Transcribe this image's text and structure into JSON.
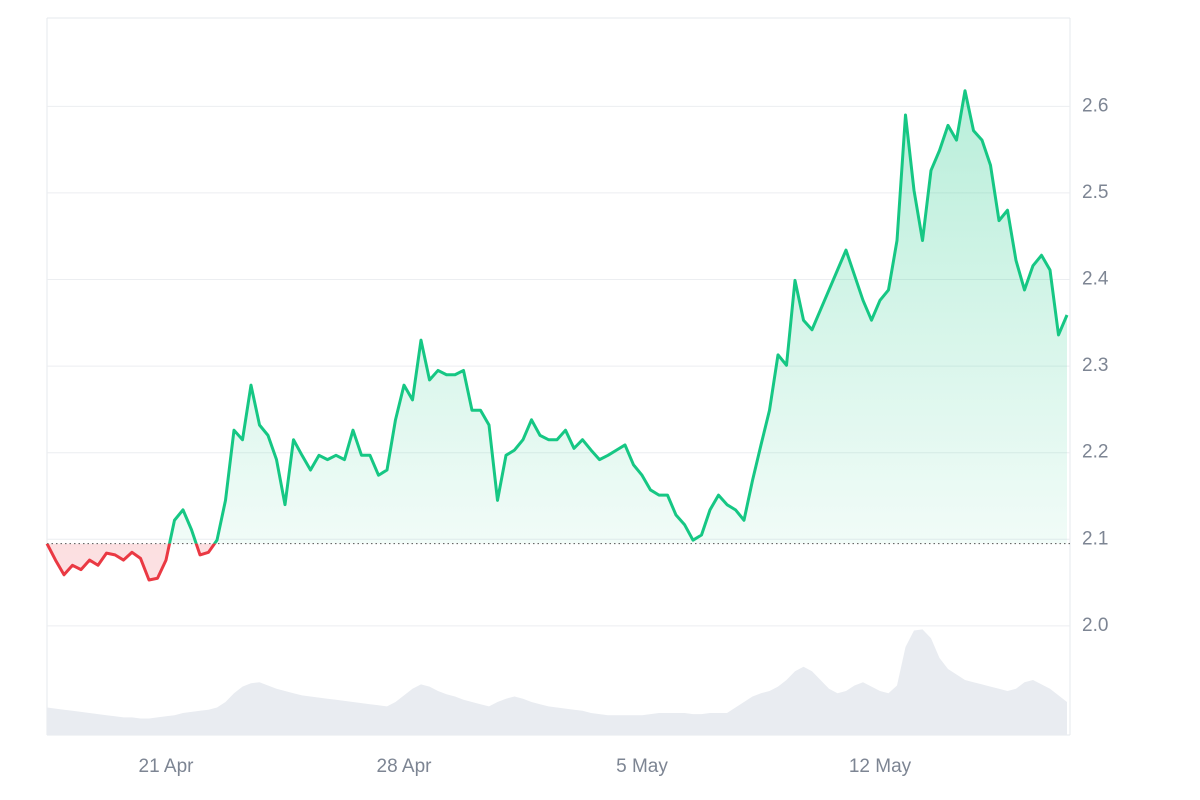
{
  "chart_data": {
    "type": "line",
    "categories": [
      null,
      null,
      null,
      null,
      null,
      null,
      null,
      null,
      null,
      null,
      null,
      null,
      null,
      null,
      "21 Apr",
      null,
      null,
      null,
      null,
      null,
      null,
      null,
      null,
      null,
      null,
      null,
      null,
      null,
      null,
      null,
      null,
      null,
      null,
      null,
      null,
      null,
      null,
      null,
      null,
      null,
      null,
      null,
      "28 Apr",
      null,
      null,
      null,
      null,
      null,
      null,
      null,
      null,
      null,
      null,
      null,
      null,
      null,
      null,
      null,
      null,
      null,
      null,
      null,
      null,
      null,
      null,
      null,
      null,
      null,
      null,
      null,
      "5 May",
      null,
      null,
      null,
      null,
      null,
      null,
      null,
      null,
      null,
      null,
      null,
      null,
      null,
      null,
      null,
      null,
      null,
      null,
      null,
      null,
      null,
      null,
      null,
      null,
      null,
      null,
      null,
      "12 May",
      null,
      null,
      null,
      null,
      null,
      null,
      null,
      null,
      null,
      null,
      null,
      null,
      null,
      null,
      null,
      null,
      null,
      null,
      null,
      null,
      null,
      null
    ],
    "values": [
      2.095,
      2.076,
      2.059,
      2.07,
      2.065,
      2.076,
      2.07,
      2.084,
      2.082,
      2.076,
      2.085,
      2.078,
      2.053,
      2.055,
      2.076,
      2.122,
      2.134,
      2.111,
      2.082,
      2.085,
      2.099,
      2.145,
      2.226,
      2.215,
      2.278,
      2.232,
      2.22,
      2.192,
      2.14,
      2.215,
      2.197,
      2.18,
      2.197,
      2.192,
      2.197,
      2.192,
      2.226,
      2.197,
      2.197,
      2.174,
      2.18,
      2.238,
      2.278,
      2.261,
      2.33,
      2.284,
      2.295,
      2.29,
      2.29,
      2.295,
      2.249,
      2.249,
      2.232,
      2.145,
      2.197,
      2.203,
      2.215,
      2.238,
      2.22,
      2.215,
      2.215,
      2.226,
      2.205,
      2.215,
      2.203,
      2.192,
      2.197,
      2.203,
      2.209,
      2.186,
      2.174,
      2.157,
      2.151,
      2.151,
      2.128,
      2.117,
      2.099,
      2.105,
      2.134,
      2.151,
      2.14,
      2.134,
      2.122,
      2.168,
      2.209,
      2.249,
      2.313,
      2.301,
      2.399,
      2.353,
      2.342,
      2.365,
      2.388,
      2.411,
      2.434,
      2.405,
      2.376,
      2.353,
      2.376,
      2.388,
      2.445,
      2.59,
      2.503,
      2.445,
      2.526,
      2.549,
      2.578,
      2.561,
      2.618,
      2.572,
      2.561,
      2.532,
      2.468,
      2.48,
      2.422,
      2.388,
      2.416,
      2.428,
      2.411,
      2.336,
      2.359
    ],
    "volume": [
      25,
      24,
      23,
      22,
      21,
      20,
      19,
      18,
      17,
      16,
      16,
      15,
      15,
      16,
      17,
      18,
      20,
      21,
      22,
      23,
      25,
      30,
      38,
      44,
      47,
      48,
      45,
      42,
      40,
      38,
      36,
      35,
      34,
      33,
      32,
      31,
      30,
      29,
      28,
      27,
      26,
      30,
      36,
      42,
      46,
      44,
      40,
      37,
      35,
      32,
      30,
      28,
      26,
      30,
      33,
      35,
      33,
      30,
      28,
      26,
      25,
      24,
      23,
      22,
      20,
      19,
      18,
      18,
      18,
      18,
      18,
      19,
      20,
      20,
      20,
      20,
      19,
      19,
      20,
      20,
      20,
      25,
      30,
      35,
      38,
      40,
      44,
      50,
      58,
      62,
      58,
      50,
      42,
      38,
      40,
      45,
      48,
      44,
      40,
      38,
      45,
      80,
      95,
      96,
      88,
      70,
      60,
      55,
      50,
      48,
      46,
      44,
      42,
      40,
      42,
      48,
      50,
      46,
      42,
      36,
      30
    ],
    "volume_lim": [
      0,
      100
    ],
    "baseline": 2.095,
    "up_color": "#16c784",
    "down_color": "#ea3943",
    "volume_color": "#e9ecf1",
    "ylim": [
      1.874,
      2.702
    ],
    "yticks": [
      {
        "value": 2,
        "label": "2.0"
      },
      2.1,
      2.2,
      2.3,
      2.4,
      2.5,
      2.6
    ],
    "grid": true
  }
}
